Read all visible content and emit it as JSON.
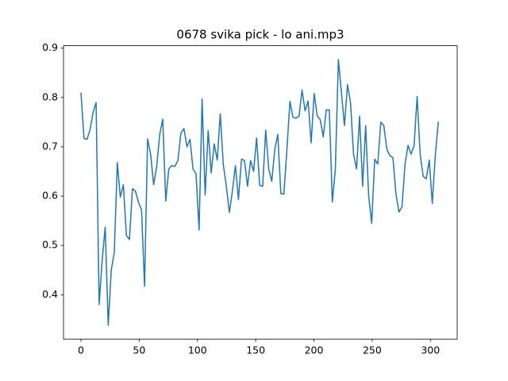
{
  "chart_data": {
    "type": "line",
    "title": "0678 svika pick - lo ani.mp3",
    "x": [
      0,
      2.6,
      5.2,
      7.8,
      10.4,
      13,
      15.6,
      18.2,
      20.8,
      23.4,
      26,
      28.6,
      31.2,
      33.8,
      36.4,
      39,
      41.6,
      44.2,
      46.8,
      49.4,
      52,
      54.6,
      57.2,
      59.8,
      62.4,
      65,
      67.6,
      70.2,
      72.8,
      75.4,
      78,
      80.6,
      83.2,
      85.8,
      88.4,
      91,
      93.6,
      96.2,
      98.8,
      101.4,
      104,
      106.6,
      109.2,
      111.8,
      114.4,
      117,
      119.6,
      122.2,
      124.8,
      127.4,
      130,
      132.6,
      135.2,
      137.8,
      140.4,
      143,
      145.6,
      148.2,
      150.8,
      153.4,
      156,
      158.6,
      161.2,
      163.8,
      166.4,
      169,
      171.6,
      174.2,
      176.8,
      179.4,
      182,
      184.6,
      187.2,
      189.8,
      192.4,
      195,
      197.6,
      200.2,
      202.8,
      205.4,
      208,
      210.6,
      213.2,
      215.8,
      218.4,
      221,
      223.6,
      226.2,
      228.8,
      231.4,
      234,
      236.6,
      239.2,
      241.8,
      244.4,
      247,
      249.6,
      252.2,
      254.8,
      257.4,
      260,
      262.6,
      265.2,
      267.8,
      270.4,
      273,
      275.6,
      278.2,
      280.8,
      283.4,
      286,
      288.6,
      291.2,
      293.8,
      296.4,
      299,
      301.6,
      304.2,
      306.8
    ],
    "series": [
      {
        "color": "#1f77b4",
        "values": [
          0.81,
          0.717,
          0.715,
          0.735,
          0.77,
          0.79,
          0.38,
          0.47,
          0.537,
          0.338,
          0.45,
          0.485,
          0.668,
          0.598,
          0.623,
          0.52,
          0.512,
          0.615,
          0.61,
          0.587,
          0.572,
          0.417,
          0.716,
          0.685,
          0.623,
          0.66,
          0.725,
          0.756,
          0.59,
          0.655,
          0.662,
          0.66,
          0.672,
          0.728,
          0.737,
          0.7,
          0.715,
          0.655,
          0.645,
          0.531,
          0.797,
          0.602,
          0.733,
          0.647,
          0.706,
          0.673,
          0.767,
          0.664,
          0.62,
          0.567,
          0.61,
          0.662,
          0.593,
          0.675,
          0.672,
          0.62,
          0.672,
          0.65,
          0.718,
          0.622,
          0.62,
          0.734,
          0.655,
          0.63,
          0.695,
          0.725,
          0.605,
          0.604,
          0.695,
          0.792,
          0.76,
          0.758,
          0.762,
          0.815,
          0.773,
          0.793,
          0.708,
          0.808,
          0.763,
          0.755,
          0.72,
          0.775,
          0.775,
          0.588,
          0.655,
          0.877,
          0.81,
          0.743,
          0.826,
          0.79,
          0.685,
          0.655,
          0.762,
          0.62,
          0.743,
          0.6,
          0.545,
          0.675,
          0.665,
          0.75,
          0.743,
          0.695,
          0.682,
          0.678,
          0.605,
          0.568,
          0.578,
          0.665,
          0.703,
          0.685,
          0.703,
          0.802,
          0.685,
          0.64,
          0.635,
          0.673,
          0.585,
          0.683,
          0.751
        ]
      }
    ],
    "xlim": [
      -15,
      323
    ],
    "ylim": [
      0.31,
      0.905
    ],
    "xticks": [
      0,
      50,
      100,
      150,
      200,
      250,
      300
    ],
    "yticks": [
      0.4,
      0.5,
      0.6,
      0.7,
      0.8,
      0.9
    ]
  }
}
